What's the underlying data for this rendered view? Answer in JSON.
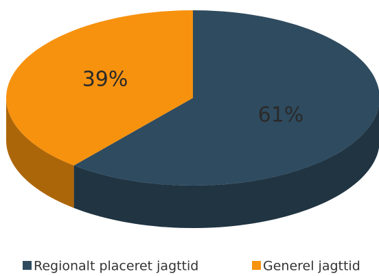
{
  "chart_data": {
    "type": "pie",
    "categories": [
      "Regionalt placeret jagttid",
      "Generel jagttid"
    ],
    "values": [
      61,
      39
    ],
    "value_labels": [
      "61%",
      "39%"
    ],
    "colors": [
      "#2f4b5f",
      "#f7920f"
    ],
    "legend": "bottom"
  }
}
